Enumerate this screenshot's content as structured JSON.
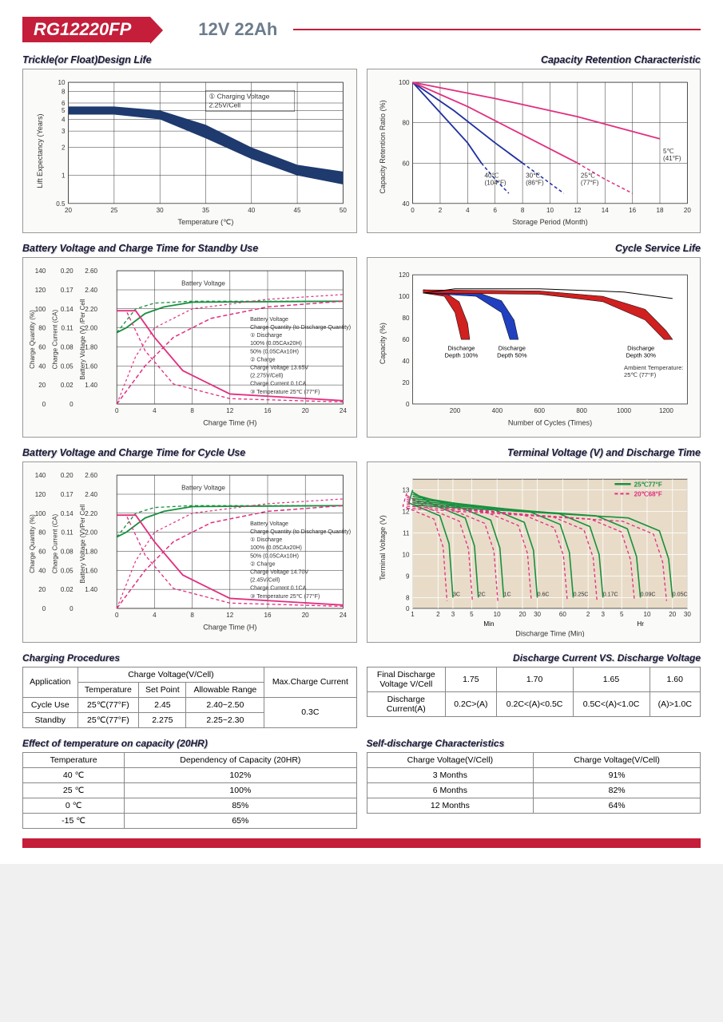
{
  "header": {
    "model": "RG12220FP",
    "spec": "12V  22Ah"
  },
  "colors": {
    "header_red": "#c41e3a",
    "header_spec": "#6b7c8c",
    "title_text": "#1a1a3a",
    "chart_border": "#999999",
    "chart_bg": "#fafaf8",
    "grid": "#333333",
    "navy_band": "#1e3a6e",
    "magenta": "#e03080",
    "blue": "#2030a0",
    "green": "#1a9040",
    "red_fill": "#d02020",
    "blue_fill": "#2040c0",
    "tan_bg": "#e8dcc8"
  },
  "chart1": {
    "title": "Trickle(or Float)Design Life",
    "xlabel": "Temperature (℃)",
    "ylabel": "Lift  Expectancy (Years)",
    "yticks": [
      "0.5",
      "1",
      "2",
      "3",
      "4",
      "5",
      "6",
      "8",
      "10"
    ],
    "xticks": [
      "20",
      "25",
      "30",
      "35",
      "40",
      "45",
      "50"
    ],
    "note": "① Charging Voltage\n   2.25V/Cell",
    "band_upper": [
      [
        20,
        5.5
      ],
      [
        25,
        5.5
      ],
      [
        30,
        5
      ],
      [
        35,
        3.5
      ],
      [
        40,
        2
      ],
      [
        45,
        1.3
      ],
      [
        50,
        1.1
      ]
    ],
    "band_lower": [
      [
        20,
        4.5
      ],
      [
        25,
        4.5
      ],
      [
        30,
        4
      ],
      [
        35,
        2.5
      ],
      [
        40,
        1.5
      ],
      [
        45,
        1.0
      ],
      [
        50,
        0.8
      ]
    ]
  },
  "chart2": {
    "title": "Capacity Retention Characteristic",
    "xlabel": "Storage Period (Month)",
    "ylabel": "Capacity Retention Ratio (%)",
    "yticks": [
      "40",
      "60",
      "80",
      "100"
    ],
    "xticks": [
      "0",
      "2",
      "4",
      "6",
      "8",
      "10",
      "12",
      "14",
      "16",
      "18",
      "20"
    ],
    "series": [
      {
        "label": "40℃\n(104°F)",
        "color": "#2030a0",
        "solid": [
          [
            0,
            100
          ],
          [
            2,
            85
          ],
          [
            4,
            70
          ],
          [
            5,
            60
          ]
        ],
        "dash": [
          [
            5,
            60
          ],
          [
            6,
            52
          ],
          [
            7,
            45
          ]
        ]
      },
      {
        "label": "30℃\n(86°F)",
        "color": "#2030a0",
        "solid": [
          [
            0,
            100
          ],
          [
            3,
            86
          ],
          [
            6,
            70
          ],
          [
            8,
            60
          ]
        ],
        "dash": [
          [
            8,
            60
          ],
          [
            10,
            50
          ],
          [
            11,
            45
          ]
        ]
      },
      {
        "label": "25℃\n(77°F)",
        "color": "#e03080",
        "solid": [
          [
            0,
            100
          ],
          [
            4,
            88
          ],
          [
            8,
            74
          ],
          [
            12,
            60
          ]
        ],
        "dash": [
          [
            12,
            60
          ],
          [
            14,
            52
          ],
          [
            16,
            45
          ]
        ]
      },
      {
        "label": "5℃\n(41°F)",
        "color": "#e03080",
        "solid": [
          [
            0,
            100
          ],
          [
            6,
            92
          ],
          [
            12,
            83
          ],
          [
            18,
            72
          ]
        ],
        "dash": []
      }
    ]
  },
  "chart3": {
    "title": "Battery Voltage and Charge Time for Standby Use",
    "xlabel": "Charge Time (H)",
    "xticks": [
      "0",
      "4",
      "8",
      "12",
      "16",
      "20",
      "24"
    ],
    "y1label": "Charge Quantity (%)",
    "y1ticks": [
      "0",
      "20",
      "40",
      "60",
      "80",
      "100",
      "120",
      "140"
    ],
    "y2label": "Charge Current (CA)",
    "y2ticks": [
      "0",
      "0.02",
      "0.05",
      "0.08",
      "0.11",
      "0.14",
      "0.17",
      "0.20"
    ],
    "y3label": "Battery Voltage (V) /Per Cell",
    "y3ticks": [
      "",
      "1.40",
      "1.60",
      "1.80",
      "2.00",
      "2.20",
      "2.40",
      "2.60"
    ],
    "notes": [
      "Battery Voltage",
      "Charge Quantity (to Discharge Quantity) Ratio",
      "① Discharge",
      "  100% (0.05CAx20H)",
      "  50% (0.05CAx10H)",
      "② Charge",
      "  Charge Voltage 13.65V",
      "  (2.275V/Cell)",
      "  Charge Current 0.1CA",
      "③ Temperature 25℃ (77°F)"
    ]
  },
  "chart4": {
    "title": "Cycle Service Life",
    "xlabel": "Number of Cycles (Times)",
    "ylabel": "Capacity (%)",
    "yticks": [
      "0",
      "20",
      "40",
      "60",
      "80",
      "100",
      "120"
    ],
    "xticks": [
      "",
      "200",
      "400",
      "600",
      "800",
      "1000",
      "1200"
    ],
    "labels": [
      "Discharge\nDepth 100%",
      "Discharge\nDepth 50%",
      "Discharge\nDepth 30%",
      "Ambient Temperature:\n25℃ (77°F)"
    ]
  },
  "chart5": {
    "title": "Battery Voltage and Charge Time for Cycle Use",
    "xlabel": "Charge Time (H)",
    "xticks": [
      "0",
      "4",
      "8",
      "12",
      "16",
      "20",
      "24"
    ],
    "y1label": "Charge Quantity (%)",
    "y1ticks": [
      "0",
      "20",
      "40",
      "60",
      "80",
      "100",
      "120",
      "140"
    ],
    "y2label": "Charge Current (CA)",
    "y2ticks": [
      "0",
      "0.02",
      "0.05",
      "0.08",
      "0.11",
      "0.14",
      "0.17",
      "0.20"
    ],
    "y3label": "Battery Voltage (V)/Per Cell",
    "y3ticks": [
      "",
      "1.40",
      "1.60",
      "1.80",
      "2.00",
      "2.20",
      "2.40",
      "2.60"
    ],
    "notes": [
      "Battery Voltage",
      "Charge Quantity (to Discharge Quantity) Ratio",
      "① Discharge",
      "  100% (0.05CAx20H)",
      "  50% (0.05CAx10H)",
      "② Charge",
      "  Charge Voltage 14.70V",
      "  (2.45V/Cell)",
      "  Charge Current 0.1CA",
      "③ Temperature 25℃ (77°F)"
    ]
  },
  "chart6": {
    "title": "Terminal Voltage (V) and Discharge Time",
    "xlabel": "Discharge Time (Min)",
    "ylabel": "Terminal Voltage (V)",
    "yticks": [
      "0",
      "8",
      "9",
      "10",
      "11",
      "12",
      "13"
    ],
    "xticks_min": [
      "1",
      "2",
      "3",
      "5",
      "10",
      "20",
      "30",
      "60"
    ],
    "xticks_hr": [
      "",
      "2",
      "3",
      "5",
      "10",
      "20",
      "30"
    ],
    "legend": [
      "25℃77°F",
      "20℃68°F"
    ],
    "rates": [
      "3C",
      "2C",
      "1C",
      "0.6C",
      "0.25C",
      "0.17C",
      "0.09C",
      "0.05C"
    ]
  },
  "table1": {
    "title": "Charging Procedures",
    "cols": [
      "Application",
      "Temperature",
      "Set Point",
      "Allowable Range",
      "Max.Charge Current"
    ],
    "header_span": "Charge Voltage(V/Cell)",
    "rows": [
      [
        "Cycle Use",
        "25℃(77°F)",
        "2.45",
        "2.40~2.50",
        "0.3C"
      ],
      [
        "Standby",
        "25℃(77°F)",
        "2.275",
        "2.25~2.30",
        ""
      ]
    ]
  },
  "table2": {
    "title": "Discharge Current VS. Discharge Voltage",
    "cols": [
      "Final Discharge\nVoltage V/Cell",
      "1.75",
      "1.70",
      "1.65",
      "1.60"
    ],
    "row2": [
      "Discharge\nCurrent(A)",
      "0.2C>(A)",
      "0.2C<(A)<0.5C",
      "0.5C<(A)<1.0C",
      "(A)>1.0C"
    ]
  },
  "table3": {
    "title": "Effect of temperature on capacity (20HR)",
    "cols": [
      "Temperature",
      "Dependency of Capacity (20HR)"
    ],
    "rows": [
      [
        "40 ℃",
        "102%"
      ],
      [
        "25 ℃",
        "100%"
      ],
      [
        "0 ℃",
        "85%"
      ],
      [
        "-15 ℃",
        "65%"
      ]
    ]
  },
  "table4": {
    "title": "Self-discharge Characteristics",
    "cols": [
      "Charge Voltage(V/Cell)",
      "Charge Voltage(V/Cell)"
    ],
    "rows": [
      [
        "3 Months",
        "91%"
      ],
      [
        "6 Months",
        "82%"
      ],
      [
        "12 Months",
        "64%"
      ]
    ]
  }
}
